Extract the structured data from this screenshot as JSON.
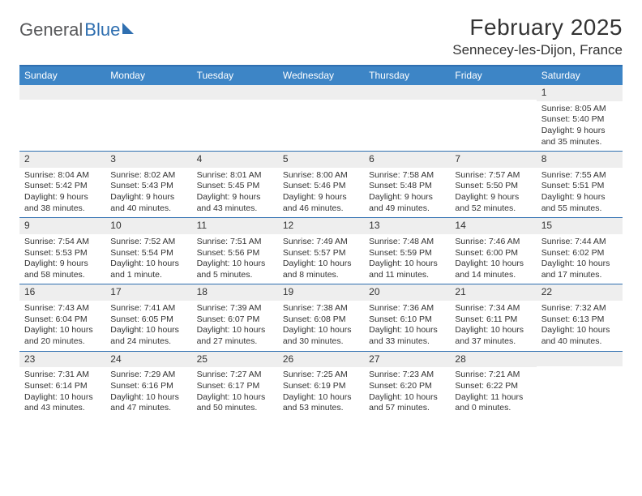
{
  "logo": {
    "word1": "General",
    "word2": "Blue"
  },
  "title": "February 2025",
  "location": "Sennecey-les-Dijon, France",
  "colors": {
    "header_bg": "#3d85c6",
    "border": "#2f6fb0",
    "daynum_bg": "#eeeeee",
    "text": "#333333",
    "logo_gray": "#58595b",
    "logo_blue": "#2f6fb0"
  },
  "weekdays": [
    "Sunday",
    "Monday",
    "Tuesday",
    "Wednesday",
    "Thursday",
    "Friday",
    "Saturday"
  ],
  "weeks": [
    [
      null,
      null,
      null,
      null,
      null,
      null,
      {
        "n": "1",
        "sunrise": "Sunrise: 8:05 AM",
        "sunset": "Sunset: 5:40 PM",
        "daylight": "Daylight: 9 hours and 35 minutes."
      }
    ],
    [
      {
        "n": "2",
        "sunrise": "Sunrise: 8:04 AM",
        "sunset": "Sunset: 5:42 PM",
        "daylight": "Daylight: 9 hours and 38 minutes."
      },
      {
        "n": "3",
        "sunrise": "Sunrise: 8:02 AM",
        "sunset": "Sunset: 5:43 PM",
        "daylight": "Daylight: 9 hours and 40 minutes."
      },
      {
        "n": "4",
        "sunrise": "Sunrise: 8:01 AM",
        "sunset": "Sunset: 5:45 PM",
        "daylight": "Daylight: 9 hours and 43 minutes."
      },
      {
        "n": "5",
        "sunrise": "Sunrise: 8:00 AM",
        "sunset": "Sunset: 5:46 PM",
        "daylight": "Daylight: 9 hours and 46 minutes."
      },
      {
        "n": "6",
        "sunrise": "Sunrise: 7:58 AM",
        "sunset": "Sunset: 5:48 PM",
        "daylight": "Daylight: 9 hours and 49 minutes."
      },
      {
        "n": "7",
        "sunrise": "Sunrise: 7:57 AM",
        "sunset": "Sunset: 5:50 PM",
        "daylight": "Daylight: 9 hours and 52 minutes."
      },
      {
        "n": "8",
        "sunrise": "Sunrise: 7:55 AM",
        "sunset": "Sunset: 5:51 PM",
        "daylight": "Daylight: 9 hours and 55 minutes."
      }
    ],
    [
      {
        "n": "9",
        "sunrise": "Sunrise: 7:54 AM",
        "sunset": "Sunset: 5:53 PM",
        "daylight": "Daylight: 9 hours and 58 minutes."
      },
      {
        "n": "10",
        "sunrise": "Sunrise: 7:52 AM",
        "sunset": "Sunset: 5:54 PM",
        "daylight": "Daylight: 10 hours and 1 minute."
      },
      {
        "n": "11",
        "sunrise": "Sunrise: 7:51 AM",
        "sunset": "Sunset: 5:56 PM",
        "daylight": "Daylight: 10 hours and 5 minutes."
      },
      {
        "n": "12",
        "sunrise": "Sunrise: 7:49 AM",
        "sunset": "Sunset: 5:57 PM",
        "daylight": "Daylight: 10 hours and 8 minutes."
      },
      {
        "n": "13",
        "sunrise": "Sunrise: 7:48 AM",
        "sunset": "Sunset: 5:59 PM",
        "daylight": "Daylight: 10 hours and 11 minutes."
      },
      {
        "n": "14",
        "sunrise": "Sunrise: 7:46 AM",
        "sunset": "Sunset: 6:00 PM",
        "daylight": "Daylight: 10 hours and 14 minutes."
      },
      {
        "n": "15",
        "sunrise": "Sunrise: 7:44 AM",
        "sunset": "Sunset: 6:02 PM",
        "daylight": "Daylight: 10 hours and 17 minutes."
      }
    ],
    [
      {
        "n": "16",
        "sunrise": "Sunrise: 7:43 AM",
        "sunset": "Sunset: 6:04 PM",
        "daylight": "Daylight: 10 hours and 20 minutes."
      },
      {
        "n": "17",
        "sunrise": "Sunrise: 7:41 AM",
        "sunset": "Sunset: 6:05 PM",
        "daylight": "Daylight: 10 hours and 24 minutes."
      },
      {
        "n": "18",
        "sunrise": "Sunrise: 7:39 AM",
        "sunset": "Sunset: 6:07 PM",
        "daylight": "Daylight: 10 hours and 27 minutes."
      },
      {
        "n": "19",
        "sunrise": "Sunrise: 7:38 AM",
        "sunset": "Sunset: 6:08 PM",
        "daylight": "Daylight: 10 hours and 30 minutes."
      },
      {
        "n": "20",
        "sunrise": "Sunrise: 7:36 AM",
        "sunset": "Sunset: 6:10 PM",
        "daylight": "Daylight: 10 hours and 33 minutes."
      },
      {
        "n": "21",
        "sunrise": "Sunrise: 7:34 AM",
        "sunset": "Sunset: 6:11 PM",
        "daylight": "Daylight: 10 hours and 37 minutes."
      },
      {
        "n": "22",
        "sunrise": "Sunrise: 7:32 AM",
        "sunset": "Sunset: 6:13 PM",
        "daylight": "Daylight: 10 hours and 40 minutes."
      }
    ],
    [
      {
        "n": "23",
        "sunrise": "Sunrise: 7:31 AM",
        "sunset": "Sunset: 6:14 PM",
        "daylight": "Daylight: 10 hours and 43 minutes."
      },
      {
        "n": "24",
        "sunrise": "Sunrise: 7:29 AM",
        "sunset": "Sunset: 6:16 PM",
        "daylight": "Daylight: 10 hours and 47 minutes."
      },
      {
        "n": "25",
        "sunrise": "Sunrise: 7:27 AM",
        "sunset": "Sunset: 6:17 PM",
        "daylight": "Daylight: 10 hours and 50 minutes."
      },
      {
        "n": "26",
        "sunrise": "Sunrise: 7:25 AM",
        "sunset": "Sunset: 6:19 PM",
        "daylight": "Daylight: 10 hours and 53 minutes."
      },
      {
        "n": "27",
        "sunrise": "Sunrise: 7:23 AM",
        "sunset": "Sunset: 6:20 PM",
        "daylight": "Daylight: 10 hours and 57 minutes."
      },
      {
        "n": "28",
        "sunrise": "Sunrise: 7:21 AM",
        "sunset": "Sunset: 6:22 PM",
        "daylight": "Daylight: 11 hours and 0 minutes."
      },
      null
    ]
  ]
}
